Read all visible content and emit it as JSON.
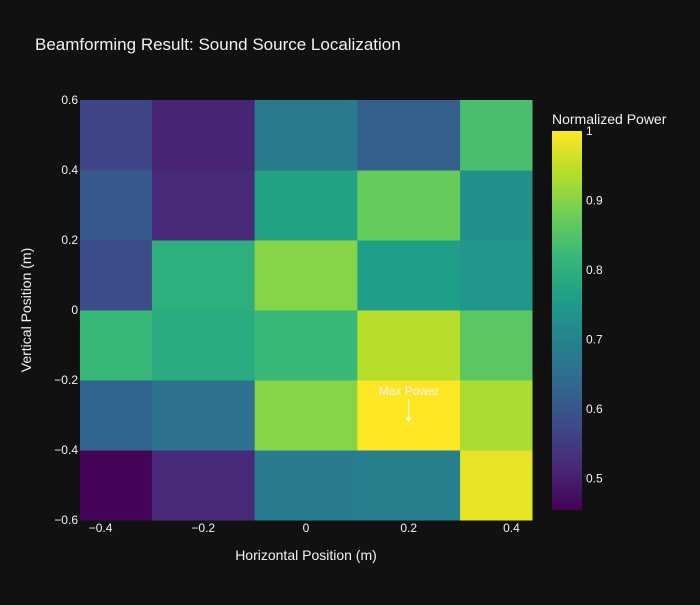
{
  "theme": {
    "background": "#111111",
    "text_color": "#f2f2f2",
    "annotation_color": "#ffffff"
  },
  "chart_data": {
    "type": "heatmap",
    "title": "Beamforming Result: Sound Source Localization",
    "xlabel": "Horizontal Position (m)",
    "ylabel": "Vertical Position (m)",
    "x_centers": [
      -0.4,
      -0.2,
      0,
      0.2,
      0.4
    ],
    "y_centers": [
      -0.5,
      -0.3,
      -0.1,
      0.1,
      0.3,
      0.5
    ],
    "xlim": [
      -0.44,
      0.44
    ],
    "ylim": [
      -0.6,
      0.6
    ],
    "x_ticks": [
      -0.4,
      -0.2,
      0,
      0.2,
      0.4
    ],
    "x_tick_labels": [
      "−0.4",
      "−0.2",
      "0",
      "0.2",
      "0.4"
    ],
    "y_ticks": [
      -0.6,
      -0.4,
      -0.2,
      0,
      0.2,
      0.4,
      0.6
    ],
    "y_tick_labels": [
      "−0.6",
      "−0.4",
      "−0.2",
      "0",
      "0.2",
      "0.4",
      "0.6"
    ],
    "z": [
      [
        0.46,
        0.52,
        0.68,
        0.69,
        0.98
      ],
      [
        0.63,
        0.66,
        0.9,
        1.0,
        0.93
      ],
      [
        0.82,
        0.79,
        0.82,
        0.94,
        0.86
      ],
      [
        0.58,
        0.8,
        0.9,
        0.76,
        0.74
      ],
      [
        0.61,
        0.52,
        0.77,
        0.87,
        0.73
      ],
      [
        0.57,
        0.51,
        0.68,
        0.62,
        0.84
      ]
    ],
    "colorbar": {
      "title": "Normalized Power",
      "range": [
        0.455,
        1.0
      ],
      "ticks": [
        0.5,
        0.6,
        0.7,
        0.8,
        0.9,
        1
      ],
      "tick_labels": [
        "0.5",
        "0.6",
        "0.7",
        "0.8",
        "0.9",
        "1"
      ],
      "colorscale": [
        "#440154",
        "#482878",
        "#3e4989",
        "#31688e",
        "#26828e",
        "#1f9e89",
        "#35b779",
        "#6ece58",
        "#b5de2b",
        "#fde725"
      ]
    },
    "annotation": {
      "text": "Max Power",
      "x": 0.2,
      "y": -0.3
    },
    "grid": false,
    "legend": "colorbar-right"
  }
}
